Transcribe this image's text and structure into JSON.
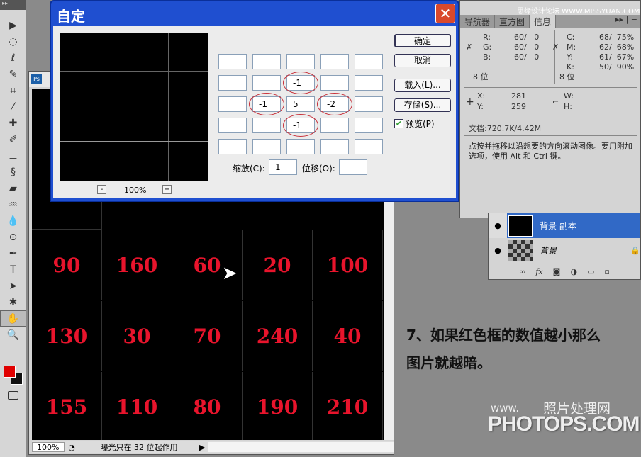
{
  "watermark_top": "思缘设计论坛 WWW.MISSYUAN.COM",
  "dialog": {
    "title": "自定",
    "close": "✕",
    "zoom": "100%",
    "minus": "-",
    "plus": "+",
    "matrix": [
      [
        "",
        "",
        "",
        "",
        ""
      ],
      [
        "",
        "",
        "-1",
        "",
        ""
      ],
      [
        "",
        "-1",
        "5",
        "-2",
        ""
      ],
      [
        "",
        "",
        "-1",
        "",
        ""
      ],
      [
        "",
        "",
        "",
        "",
        ""
      ]
    ],
    "scale_label": "缩放(C):",
    "scale_value": "1",
    "offset_label": "位移(O):",
    "offset_value": "",
    "ok": "确定",
    "cancel": "取消",
    "load": "载入(L)...",
    "save": "存储(S)...",
    "preview_label": "预览(P)",
    "preview_checked": true,
    "highlight_color": "#c8303a"
  },
  "document": {
    "icon": "Ps",
    "visible_partial": "2",
    "cells": [
      [
        "90",
        "160",
        "60",
        "20",
        "100"
      ],
      [
        "130",
        "30",
        "70",
        "240",
        "40"
      ],
      [
        "155",
        "110",
        "80",
        "190",
        "210"
      ]
    ],
    "cell_text_color": "#e8142c",
    "status_zoom": "100%",
    "status_text": "曝光只在 32 位起作用"
  },
  "info": {
    "tabs": [
      "导航器",
      "直方图",
      "信息"
    ],
    "active_tab": "信息",
    "r": "R:",
    "rv": "60/   0",
    "g": "G:",
    "gv": "60/   0",
    "b": "B:",
    "bv": "60/   0",
    "c": "C:",
    "cv": "68/  75%",
    "m": "M:",
    "mv": "62/  68%",
    "y": "Y:",
    "yv": "61/  67%",
    "k": "K:",
    "kv": "50/  90%",
    "bits_left": "8 位",
    "bits_right": "8 位",
    "x": "X:",
    "xv": "281",
    "yy": "Y:",
    "yyv": "259",
    "w": "W:",
    "h": "H:",
    "doc": "文档:720.7K/4.42M",
    "hint": "点按并拖移以沿想要的方向滚动图像。要用附加选项，使用 Alt 和 Ctrl 键。"
  },
  "layers": {
    "items": [
      {
        "name": "背景 副本",
        "selected": true
      },
      {
        "name": "背景",
        "selected": false
      }
    ],
    "footer_fx": "fx"
  },
  "caption": {
    "line1": "7、如果红色框的数值越小那么",
    "line2": "图片就越暗。"
  },
  "watermark_bottom": {
    "small": "www.",
    "cn": "照片处理网",
    "big": "PHOTOPS.COM"
  },
  "colors": {
    "foreground": "#e00000",
    "background": "#111111",
    "selection": "#3169c6"
  }
}
